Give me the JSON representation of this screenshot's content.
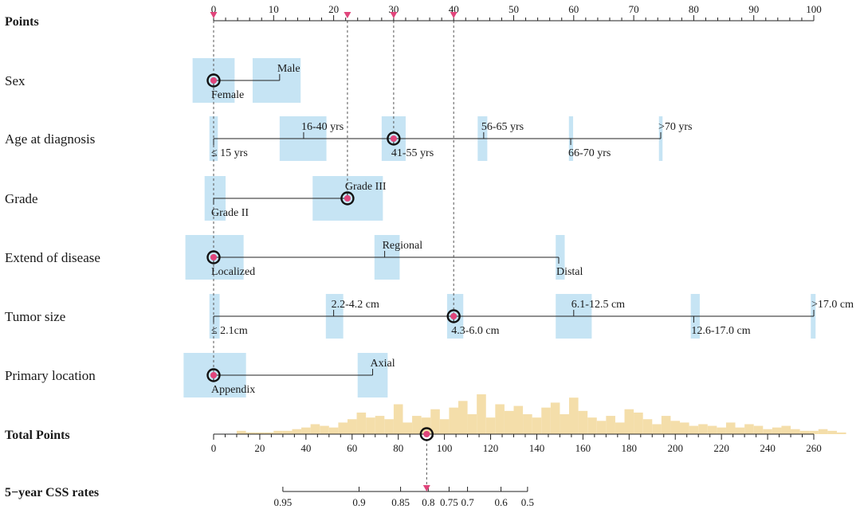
{
  "chart_data": {
    "type": "nomogram",
    "points_axis": {
      "label": "Points",
      "range": [
        0,
        100
      ],
      "ticks": [
        0,
        10,
        20,
        30,
        40,
        50,
        60,
        70,
        80,
        90,
        100
      ],
      "tick_labels": [
        "0",
        "10",
        "20",
        "30",
        "40",
        "50",
        "60",
        "70",
        "80",
        "90",
        "100"
      ],
      "marker_values": [
        0,
        22.3,
        30,
        40
      ]
    },
    "variables": [
      {
        "label": "Sex",
        "line": [
          0,
          11
        ],
        "levels": [
          {
            "name": "Female",
            "points": 0,
            "label_side": "below",
            "box": [
              -3.5,
              3.5
            ],
            "box_h": "tall"
          },
          {
            "name": "Male",
            "points": 11,
            "label_side": "above",
            "box": [
              6.5,
              14.5
            ],
            "box_h": "tall"
          }
        ],
        "selected_points": 0
      },
      {
        "label": "Age at diagnosis",
        "line": [
          0,
          74.5
        ],
        "levels": [
          {
            "name": "≤ 15 yrs",
            "points": 0,
            "label_side": "below",
            "box": [
              -0.7,
              0.7
            ],
            "box_h": "tall"
          },
          {
            "name": "16-40 yrs",
            "points": 15,
            "label_side": "above",
            "box": [
              11,
              18.8
            ],
            "box_h": "tall"
          },
          {
            "name": "41-55 yrs",
            "points": 30,
            "label_side": "below",
            "box": [
              28,
              32
            ],
            "box_h": "tall"
          },
          {
            "name": "56-65 yrs",
            "points": 45,
            "label_side": "above",
            "box": [
              44,
              45.6
            ],
            "box_h": "tall"
          },
          {
            "name": "66-70 yrs",
            "points": 59.5,
            "label_side": "below",
            "box": [
              59.2,
              59.9
            ],
            "box_h": "tall"
          },
          {
            "name": ">70 yrs",
            "points": 74.5,
            "label_side": "above",
            "box": [
              74.2,
              74.8
            ],
            "box_h": "tall"
          }
        ],
        "selected_points": 30
      },
      {
        "label": "Grade",
        "line": [
          0,
          22.3
        ],
        "levels": [
          {
            "name": "Grade II",
            "points": 0,
            "label_side": "below",
            "box": [
              -1.5,
              2
            ],
            "box_h": "tall"
          },
          {
            "name": "Grade III",
            "points": 22.3,
            "label_side": "above",
            "box": [
              16.5,
              28.2
            ],
            "box_h": "tall"
          }
        ],
        "selected_points": 22.3
      },
      {
        "label": "Extend of disease",
        "line": [
          0,
          57.5
        ],
        "levels": [
          {
            "name": "Localized",
            "points": 0,
            "label_side": "below",
            "box": [
              -4.7,
              5
            ],
            "box_h": "tall"
          },
          {
            "name": "Regional",
            "points": 28.5,
            "label_side": "above",
            "box": [
              26.8,
              31
            ],
            "box_h": "tall"
          },
          {
            "name": "Distal",
            "points": 57.5,
            "label_side": "below",
            "box": [
              57,
              58.5
            ],
            "box_h": "tall"
          }
        ],
        "selected_points": 0
      },
      {
        "label": "Tumor size",
        "line": [
          0,
          100
        ],
        "levels": [
          {
            "name": "≤ 2.1cm",
            "points": 0,
            "label_side": "below",
            "box": [
              -0.7,
              1
            ],
            "box_h": "tall"
          },
          {
            "name": "2.2-4.2 cm",
            "points": 20,
            "label_side": "above",
            "box": [
              18.7,
              21.6
            ],
            "box_h": "tall"
          },
          {
            "name": "4.3-6.0 cm",
            "points": 40,
            "label_side": "below",
            "box": [
              38.9,
              41.6
            ],
            "box_h": "tall"
          },
          {
            "name": "6.1-12.5 cm",
            "points": 60,
            "label_side": "above",
            "box": [
              57,
              63
            ],
            "box_h": "tall"
          },
          {
            "name": "12.6-17.0 cm",
            "points": 80,
            "label_side": "below",
            "box": [
              79.5,
              81
            ],
            "box_h": "tall"
          },
          {
            "name": ">17.0 cm",
            "points": 100,
            "label_side": "above",
            "box": [
              99.5,
              100.3
            ],
            "box_h": "tall"
          }
        ],
        "selected_points": 40
      },
      {
        "label": "Primary location",
        "line": [
          0,
          26.5
        ],
        "levels": [
          {
            "name": "Appendix",
            "points": 0,
            "label_side": "below",
            "box": [
              -5,
              5.4
            ],
            "box_h": "tall"
          },
          {
            "name": "Axial",
            "points": 26.5,
            "label_side": "above",
            "box": [
              24,
              29
            ],
            "box_h": "tall"
          }
        ],
        "selected_points": 0
      }
    ],
    "total_points_axis": {
      "label": "Total Points",
      "range": [
        0,
        260
      ],
      "ticks": [
        0,
        20,
        40,
        60,
        80,
        100,
        120,
        140,
        160,
        180,
        200,
        220,
        240,
        260
      ],
      "tick_labels": [
        "0",
        "20",
        "40",
        "60",
        "80",
        "100",
        "120",
        "140",
        "160",
        "180",
        "200",
        "220",
        "240",
        "260"
      ],
      "selected_value": 92.3,
      "histogram": {
        "bin_start": 10,
        "bin_width": 4,
        "counts": [
          2,
          1,
          1,
          1,
          2,
          2,
          3,
          4,
          6,
          5,
          4,
          7,
          9,
          13,
          10,
          11,
          9,
          18,
          7,
          11,
          10,
          15,
          9,
          16,
          20,
          12,
          24,
          10,
          18,
          14,
          17,
          12,
          10,
          16,
          19,
          12,
          22,
          14,
          10,
          8,
          11,
          7,
          15,
          13,
          9,
          6,
          11,
          8,
          7,
          5,
          6,
          5,
          4,
          7,
          4,
          6,
          5,
          3,
          4,
          5,
          3,
          2,
          2,
          3,
          2,
          1
        ],
        "max_count": 24,
        "color": "#f4deaa"
      }
    },
    "outcome_axis": {
      "label": "5−year CSS rates",
      "ticks": [
        {
          "label": "0.95",
          "total": 30
        },
        {
          "label": "0.9",
          "total": 63
        },
        {
          "label": "0.85",
          "total": 81
        },
        {
          "label": "0.8",
          "total": 93
        },
        {
          "label": "0.75",
          "total": 102
        },
        {
          "label": "0.7",
          "total": 110
        },
        {
          "label": "0.6",
          "total": 124.5
        },
        {
          "label": "0.5",
          "total": 136
        }
      ],
      "range_total": [
        30,
        136
      ],
      "selected_total": 92.3
    },
    "colors": {
      "box": "#c6e4f4",
      "marker": "#e0457b",
      "circle": "#111111",
      "line": "#222222",
      "dashed": "#555555"
    }
  }
}
